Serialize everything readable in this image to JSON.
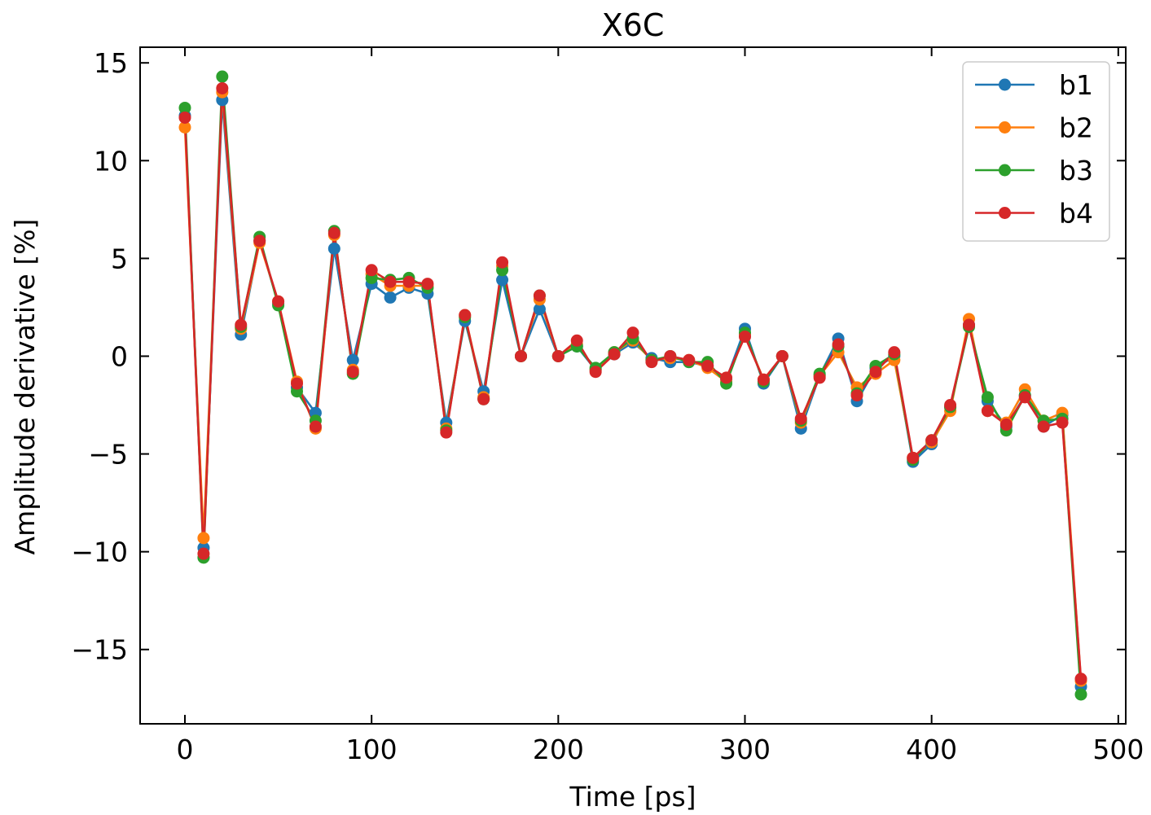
{
  "chart_data": {
    "type": "line",
    "title": "X6C",
    "xlabel": "Time [ps]",
    "ylabel": "Amplitude derivative [%]",
    "xlim": [
      -24,
      504
    ],
    "ylim": [
      -18.8,
      15.8
    ],
    "xticks": [
      0,
      100,
      200,
      300,
      400,
      500
    ],
    "xtick_labels": [
      "0",
      "100",
      "200",
      "300",
      "400",
      "500"
    ],
    "yticks": [
      -15,
      -10,
      -5,
      0,
      5,
      10,
      15
    ],
    "ytick_labels": [
      "−15",
      "−10",
      "−5",
      "0",
      "5",
      "10",
      "15"
    ],
    "legend_position": "top-right",
    "grid": false,
    "x": [
      0,
      10,
      20,
      30,
      40,
      50,
      60,
      70,
      80,
      90,
      100,
      110,
      120,
      130,
      140,
      150,
      160,
      170,
      180,
      190,
      200,
      210,
      220,
      230,
      240,
      250,
      260,
      270,
      280,
      290,
      300,
      310,
      320,
      330,
      340,
      350,
      360,
      370,
      380,
      390,
      400,
      410,
      420,
      430,
      440,
      450,
      460,
      470,
      480
    ],
    "series": [
      {
        "name": "b1",
        "color": "#1f77b4",
        "values": [
          12.3,
          -9.8,
          13.1,
          1.1,
          5.9,
          2.7,
          -1.6,
          -2.9,
          5.5,
          -0.2,
          3.7,
          3.0,
          3.5,
          3.2,
          -3.4,
          1.8,
          -1.8,
          3.9,
          0.0,
          2.4,
          0.0,
          0.5,
          -0.7,
          0.1,
          0.7,
          -0.1,
          -0.3,
          -0.3,
          -0.5,
          -1.2,
          1.4,
          -1.4,
          0.0,
          -3.7,
          -1.0,
          0.9,
          -2.3,
          -0.6,
          0.0,
          -5.4,
          -4.5,
          -2.6,
          1.6,
          -2.3,
          -3.6,
          -2.0,
          -3.6,
          -3.0,
          -16.9
        ]
      },
      {
        "name": "b2",
        "color": "#ff7f0e",
        "values": [
          11.7,
          -9.3,
          13.5,
          1.4,
          5.8,
          2.8,
          -1.3,
          -3.7,
          6.2,
          -0.7,
          4.2,
          3.6,
          3.6,
          3.6,
          -3.7,
          2.1,
          -2.1,
          4.6,
          0.0,
          2.9,
          0.0,
          0.6,
          -0.7,
          0.2,
          0.8,
          -0.2,
          -0.1,
          -0.2,
          -0.6,
          -1.3,
          1.1,
          -1.2,
          0.0,
          -3.4,
          -1.0,
          0.2,
          -1.6,
          -0.9,
          -0.2,
          -5.2,
          -4.4,
          -2.8,
          1.9,
          -2.8,
          -3.4,
          -1.7,
          -3.3,
          -2.9,
          -16.6
        ]
      },
      {
        "name": "b3",
        "color": "#2ca02c",
        "values": [
          12.7,
          -10.3,
          14.3,
          1.5,
          6.1,
          2.6,
          -1.8,
          -3.3,
          6.4,
          -0.9,
          4.0,
          3.9,
          4.0,
          3.5,
          -3.8,
          2.0,
          -2.2,
          4.4,
          0.0,
          3.1,
          0.0,
          0.5,
          -0.6,
          0.2,
          0.9,
          -0.2,
          0.0,
          -0.3,
          -0.3,
          -1.4,
          1.2,
          -1.3,
          0.0,
          -3.3,
          -0.9,
          0.5,
          -1.9,
          -0.5,
          0.1,
          -5.3,
          -4.3,
          -2.6,
          1.5,
          -2.1,
          -3.8,
          -2.0,
          -3.3,
          -3.2,
          -17.3
        ]
      },
      {
        "name": "b4",
        "color": "#d62728",
        "values": [
          12.2,
          -10.1,
          13.7,
          1.6,
          5.9,
          2.8,
          -1.4,
          -3.6,
          6.3,
          -0.8,
          4.4,
          3.8,
          3.8,
          3.7,
          -3.9,
          2.1,
          -2.2,
          4.8,
          0.0,
          3.1,
          0.0,
          0.8,
          -0.8,
          0.1,
          1.2,
          -0.3,
          0.0,
          -0.2,
          -0.5,
          -1.1,
          1.0,
          -1.2,
          0.0,
          -3.2,
          -1.1,
          0.6,
          -2.0,
          -0.8,
          0.2,
          -5.2,
          -4.3,
          -2.5,
          1.6,
          -2.8,
          -3.5,
          -2.1,
          -3.6,
          -3.4,
          -16.5
        ]
      }
    ]
  }
}
